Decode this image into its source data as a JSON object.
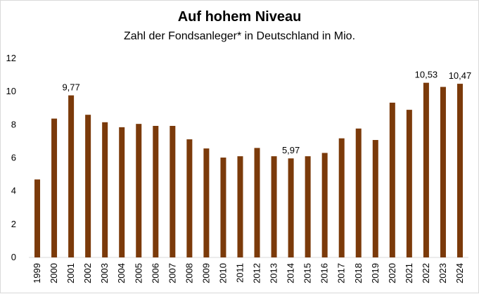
{
  "chart_data": {
    "type": "bar",
    "title": "Auf hohem Niveau",
    "subtitle": "Zahl der Fondsanleger* in Deutschland in Mio.",
    "xlabel": "",
    "ylabel": "",
    "categories": [
      "1999",
      "2000",
      "2001",
      "2002",
      "2003",
      "2004",
      "2005",
      "2006",
      "2007",
      "2008",
      "2009",
      "2010",
      "2011",
      "2012",
      "2013",
      "2014",
      "2015",
      "2016",
      "2017",
      "2018",
      "2019",
      "2020",
      "2021",
      "2022",
      "2023",
      "2024"
    ],
    "values": [
      4.7,
      8.37,
      9.77,
      8.6,
      8.15,
      7.85,
      8.05,
      7.93,
      7.93,
      7.12,
      6.57,
      6.02,
      6.1,
      6.6,
      6.1,
      5.97,
      6.1,
      6.3,
      7.18,
      7.77,
      7.08,
      9.33,
      8.9,
      10.53,
      10.28,
      10.47
    ],
    "data_labels": [
      {
        "index": 2,
        "text": "9,77"
      },
      {
        "index": 15,
        "text": "5,97"
      },
      {
        "index": 23,
        "text": "10,53"
      },
      {
        "index": 25,
        "text": "10,47"
      }
    ],
    "ylim": [
      0,
      12
    ],
    "yticks": [
      "0",
      "2",
      "4",
      "6",
      "8",
      "10",
      "12"
    ],
    "ytick_values": [
      0,
      2,
      4,
      6,
      8,
      10,
      12
    ],
    "grid": false,
    "legend": "none",
    "bar_color": "#7b3a0a"
  }
}
